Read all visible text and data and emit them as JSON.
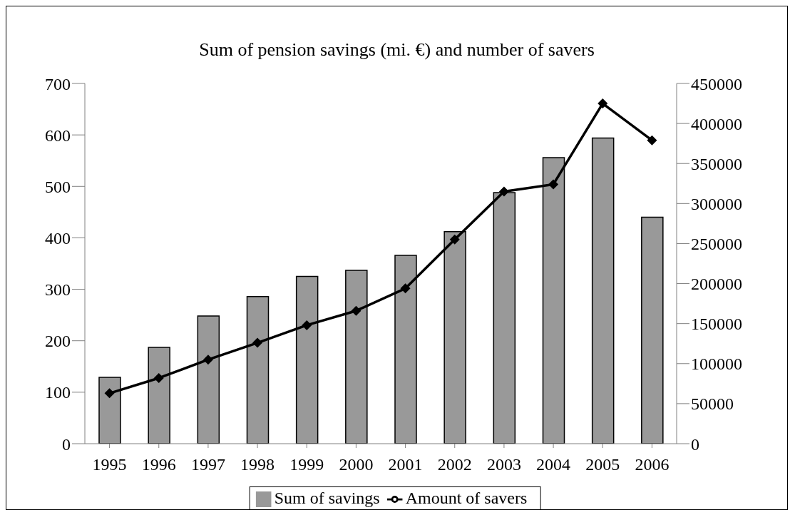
{
  "chart_data": {
    "type": "bar",
    "title": "Sum of pension savings (mi. €) and number of savers",
    "categories": [
      "1995",
      "1996",
      "1997",
      "1998",
      "1999",
      "2000",
      "2001",
      "2002",
      "2003",
      "2004",
      "2005",
      "2006"
    ],
    "series": [
      {
        "name": "Sum of savings",
        "color": "#999999",
        "values": [
          129,
          187,
          248,
          286,
          325,
          337,
          366,
          412,
          488,
          556,
          594,
          440
        ]
      },
      {
        "name": "Amount of savers",
        "type": "line",
        "axis": "y2",
        "color": "#000000",
        "marker": "diamond",
        "values": [
          63000,
          82000,
          105000,
          126000,
          148000,
          166000,
          194000,
          255000,
          315000,
          324000,
          425000,
          379000
        ]
      }
    ],
    "ylim": [
      0,
      700
    ],
    "yticks": [
      0,
      100,
      200,
      300,
      400,
      500,
      600,
      700
    ],
    "y2lim": [
      0,
      450000
    ],
    "y2ticks": [
      0,
      50000,
      100000,
      150000,
      200000,
      250000,
      300000,
      350000,
      400000,
      450000
    ],
    "legend": "bottom"
  }
}
